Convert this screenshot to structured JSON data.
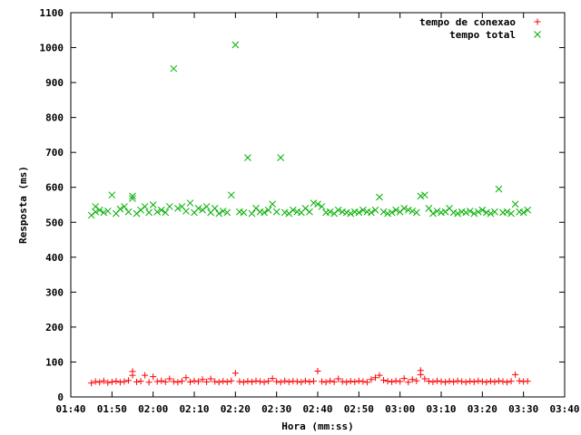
{
  "chart_data": {
    "type": "scatter",
    "xlabel": "Hora (mm:ss)",
    "ylabel": "Resposta (ms)",
    "ylim": [
      0,
      1100
    ],
    "xlim": [
      "01:40",
      "03:40"
    ],
    "x_ticks": [
      "01:40",
      "01:50",
      "02:00",
      "02:10",
      "02:20",
      "02:30",
      "02:40",
      "02:50",
      "03:00",
      "03:10",
      "03:20",
      "03:30",
      "03:40"
    ],
    "y_ticks": [
      0,
      100,
      200,
      300,
      400,
      500,
      600,
      700,
      800,
      900,
      1000,
      1100
    ],
    "grid": false,
    "legend_position": "top-right",
    "series": [
      {
        "name": "tempo de conexao",
        "marker": "plus",
        "color": "#ff0000",
        "points": [
          [
            "01:45",
            40
          ],
          [
            "01:46",
            44
          ],
          [
            "01:47",
            42
          ],
          [
            "01:48",
            46
          ],
          [
            "01:49",
            41
          ],
          [
            "01:50",
            43
          ],
          [
            "01:51",
            45
          ],
          [
            "01:52",
            42
          ],
          [
            "01:53",
            44
          ],
          [
            "01:54",
            47
          ],
          [
            "01:55",
            73
          ],
          [
            "01:55",
            62
          ],
          [
            "01:56",
            43
          ],
          [
            "01:57",
            45
          ],
          [
            "01:58",
            62
          ],
          [
            "01:59",
            42
          ],
          [
            "02:00",
            58
          ],
          [
            "02:01",
            44
          ],
          [
            "02:02",
            46
          ],
          [
            "02:03",
            43
          ],
          [
            "02:04",
            52
          ],
          [
            "02:05",
            44
          ],
          [
            "02:06",
            42
          ],
          [
            "02:07",
            45
          ],
          [
            "02:08",
            55
          ],
          [
            "02:09",
            43
          ],
          [
            "02:10",
            46
          ],
          [
            "02:11",
            44
          ],
          [
            "02:12",
            50
          ],
          [
            "02:13",
            43
          ],
          [
            "02:14",
            52
          ],
          [
            "02:15",
            44
          ],
          [
            "02:16",
            42
          ],
          [
            "02:17",
            45
          ],
          [
            "02:18",
            43
          ],
          [
            "02:19",
            46
          ],
          [
            "02:20",
            68
          ],
          [
            "02:21",
            44
          ],
          [
            "02:22",
            42
          ],
          [
            "02:23",
            45
          ],
          [
            "02:24",
            43
          ],
          [
            "02:25",
            46
          ],
          [
            "02:26",
            44
          ],
          [
            "02:27",
            42
          ],
          [
            "02:28",
            45
          ],
          [
            "02:29",
            53
          ],
          [
            "02:30",
            44
          ],
          [
            "02:31",
            42
          ],
          [
            "02:32",
            46
          ],
          [
            "02:33",
            43
          ],
          [
            "02:34",
            45
          ],
          [
            "02:35",
            44
          ],
          [
            "02:36",
            42
          ],
          [
            "02:37",
            46
          ],
          [
            "02:38",
            43
          ],
          [
            "02:39",
            45
          ],
          [
            "02:40",
            74
          ],
          [
            "02:41",
            44
          ],
          [
            "02:42",
            42
          ],
          [
            "02:43",
            46
          ],
          [
            "02:44",
            43
          ],
          [
            "02:45",
            52
          ],
          [
            "02:46",
            44
          ],
          [
            "02:47",
            42
          ],
          [
            "02:48",
            45
          ],
          [
            "02:49",
            43
          ],
          [
            "02:50",
            46
          ],
          [
            "02:51",
            44
          ],
          [
            "02:52",
            42
          ],
          [
            "02:53",
            50
          ],
          [
            "02:54",
            55
          ],
          [
            "02:55",
            62
          ],
          [
            "02:56",
            48
          ],
          [
            "02:57",
            45
          ],
          [
            "02:58",
            43
          ],
          [
            "02:59",
            46
          ],
          [
            "03:00",
            44
          ],
          [
            "03:01",
            53
          ],
          [
            "03:02",
            42
          ],
          [
            "03:03",
            50
          ],
          [
            "03:04",
            46
          ],
          [
            "03:05",
            76
          ],
          [
            "03:05",
            64
          ],
          [
            "03:06",
            52
          ],
          [
            "03:07",
            45
          ],
          [
            "03:08",
            43
          ],
          [
            "03:09",
            46
          ],
          [
            "03:10",
            44
          ],
          [
            "03:11",
            42
          ],
          [
            "03:12",
            45
          ],
          [
            "03:13",
            43
          ],
          [
            "03:14",
            46
          ],
          [
            "03:15",
            44
          ],
          [
            "03:16",
            42
          ],
          [
            "03:17",
            45
          ],
          [
            "03:18",
            43
          ],
          [
            "03:19",
            46
          ],
          [
            "03:20",
            44
          ],
          [
            "03:21",
            42
          ],
          [
            "03:22",
            45
          ],
          [
            "03:23",
            43
          ],
          [
            "03:24",
            46
          ],
          [
            "03:25",
            44
          ],
          [
            "03:26",
            42
          ],
          [
            "03:27",
            45
          ],
          [
            "03:28",
            64
          ],
          [
            "03:29",
            46
          ],
          [
            "03:30",
            44
          ],
          [
            "03:31",
            45
          ]
        ]
      },
      {
        "name": "tempo total",
        "marker": "cross",
        "color": "#00b000",
        "points": [
          [
            "01:45",
            520
          ],
          [
            "01:46",
            545
          ],
          [
            "01:46",
            530
          ],
          [
            "01:47",
            535
          ],
          [
            "01:48",
            528
          ],
          [
            "01:49",
            532
          ],
          [
            "01:50",
            578
          ],
          [
            "01:51",
            525
          ],
          [
            "01:52",
            538
          ],
          [
            "01:53",
            545
          ],
          [
            "01:54",
            530
          ],
          [
            "01:55",
            568
          ],
          [
            "01:55",
            575
          ],
          [
            "01:56",
            525
          ],
          [
            "01:57",
            535
          ],
          [
            "01:58",
            545
          ],
          [
            "01:59",
            528
          ],
          [
            "02:00",
            550
          ],
          [
            "02:01",
            530
          ],
          [
            "02:02",
            535
          ],
          [
            "02:03",
            528
          ],
          [
            "02:04",
            545
          ],
          [
            "02:05",
            940
          ],
          [
            "02:06",
            540
          ],
          [
            "02:07",
            545
          ],
          [
            "02:08",
            532
          ],
          [
            "02:09",
            555
          ],
          [
            "02:10",
            528
          ],
          [
            "02:11",
            540
          ],
          [
            "02:12",
            535
          ],
          [
            "02:13",
            545
          ],
          [
            "02:14",
            528
          ],
          [
            "02:15",
            540
          ],
          [
            "02:16",
            525
          ],
          [
            "02:17",
            532
          ],
          [
            "02:18",
            528
          ],
          [
            "02:19",
            578
          ],
          [
            "02:20",
            1008
          ],
          [
            "02:21",
            530
          ],
          [
            "02:22",
            528
          ],
          [
            "02:23",
            685
          ],
          [
            "02:24",
            525
          ],
          [
            "02:25",
            540
          ],
          [
            "02:26",
            530
          ],
          [
            "02:27",
            528
          ],
          [
            "02:28",
            535
          ],
          [
            "02:29",
            552
          ],
          [
            "02:30",
            530
          ],
          [
            "02:31",
            685
          ],
          [
            "02:32",
            528
          ],
          [
            "02:33",
            525
          ],
          [
            "02:34",
            535
          ],
          [
            "02:35",
            530
          ],
          [
            "02:36",
            528
          ],
          [
            "02:37",
            540
          ],
          [
            "02:38",
            530
          ],
          [
            "02:39",
            555
          ],
          [
            "02:40",
            552
          ],
          [
            "02:41",
            545
          ],
          [
            "02:42",
            528
          ],
          [
            "02:43",
            530
          ],
          [
            "02:44",
            525
          ],
          [
            "02:45",
            535
          ],
          [
            "02:46",
            530
          ],
          [
            "02:47",
            528
          ],
          [
            "02:48",
            525
          ],
          [
            "02:49",
            530
          ],
          [
            "02:50",
            528
          ],
          [
            "02:51",
            535
          ],
          [
            "02:52",
            530
          ],
          [
            "02:53",
            528
          ],
          [
            "02:54",
            535
          ],
          [
            "02:55",
            572
          ],
          [
            "02:56",
            530
          ],
          [
            "02:57",
            525
          ],
          [
            "02:58",
            528
          ],
          [
            "02:59",
            535
          ],
          [
            "03:00",
            530
          ],
          [
            "03:01",
            540
          ],
          [
            "03:02",
            535
          ],
          [
            "03:03",
            532
          ],
          [
            "03:04",
            528
          ],
          [
            "03:05",
            575
          ],
          [
            "03:06",
            578
          ],
          [
            "03:07",
            540
          ],
          [
            "03:08",
            525
          ],
          [
            "03:09",
            532
          ],
          [
            "03:10",
            528
          ],
          [
            "03:11",
            530
          ],
          [
            "03:12",
            540
          ],
          [
            "03:13",
            528
          ],
          [
            "03:14",
            525
          ],
          [
            "03:15",
            530
          ],
          [
            "03:16",
            528
          ],
          [
            "03:17",
            532
          ],
          [
            "03:18",
            525
          ],
          [
            "03:19",
            530
          ],
          [
            "03:20",
            535
          ],
          [
            "03:21",
            528
          ],
          [
            "03:22",
            525
          ],
          [
            "03:23",
            530
          ],
          [
            "03:24",
            595
          ],
          [
            "03:25",
            528
          ],
          [
            "03:26",
            530
          ],
          [
            "03:27",
            525
          ],
          [
            "03:28",
            552
          ],
          [
            "03:29",
            530
          ],
          [
            "03:30",
            528
          ],
          [
            "03:31",
            535
          ]
        ]
      }
    ]
  }
}
